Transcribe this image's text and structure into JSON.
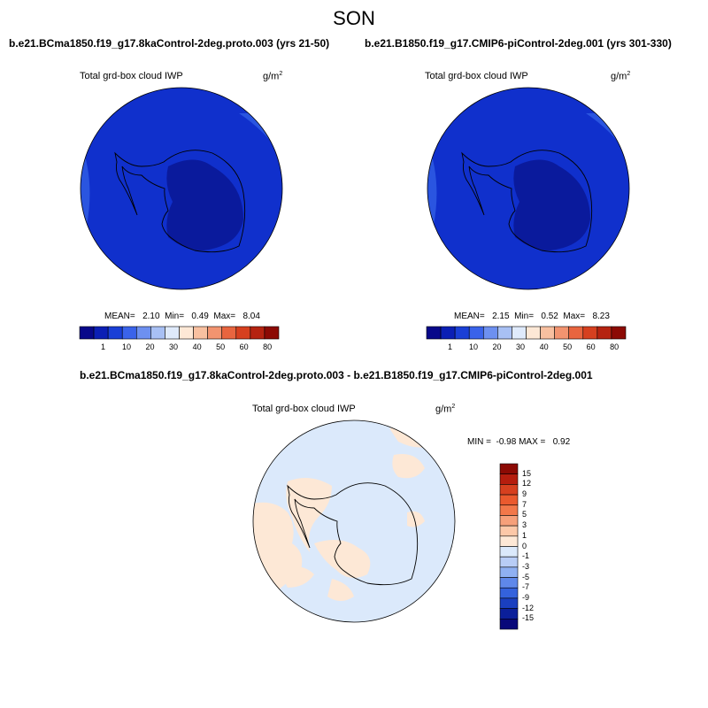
{
  "figure": {
    "season": "SON",
    "diff_title": "b.e21.BCma1850.f19_g17.8kaControl-2deg.proto.003 - b.e21.B1850.f19_g17.CMIP6-piControl-2deg.001"
  },
  "panels": [
    {
      "case": "b.e21.BCma1850.f19_g17.8kaControl-2deg.proto.003 (yrs 21-50)",
      "variable": "Total grd-box cloud IWP",
      "units_base": "g/m",
      "units_exp": "2",
      "stats": "MEAN=   2.10  Min=   0.49  Max=   8.04",
      "mean": 2.1,
      "min": 0.49,
      "max": 8.04
    },
    {
      "case": "b.e21.B1850.f19_g17.CMIP6-piControl-2deg.001 (yrs 301-330)",
      "variable": "Total grd-box cloud IWP",
      "units_base": "g/m",
      "units_exp": "2",
      "stats": "MEAN=   2.15  Min=   0.52  Max=   8.23",
      "mean": 2.15,
      "min": 0.52,
      "max": 8.23
    }
  ],
  "difference": {
    "variable": "Total grd-box cloud IWP",
    "units_base": "g/m",
    "units_exp": "2",
    "stats": "MIN =  -0.98 MAX =   0.92",
    "min": -0.98,
    "max": 0.92
  },
  "colorbar_main": {
    "ticks": [
      "1",
      "10",
      "20",
      "30",
      "40",
      "50",
      "60",
      "80"
    ],
    "colors": [
      "#08088a",
      "#0b1fb5",
      "#1a3fd6",
      "#3a63ea",
      "#6d90f0",
      "#a8c0f4",
      "#dfeafb",
      "#fde8d6",
      "#f8c0a0",
      "#f29470",
      "#e8653f",
      "#d6401f",
      "#b52310",
      "#8c0a04"
    ]
  },
  "colorbar_diff": {
    "ticks": [
      "15",
      "12",
      "9",
      "7",
      "5",
      "3",
      "1",
      "0",
      "-1",
      "-3",
      "-5",
      "-7",
      "-9",
      "-12",
      "-15"
    ],
    "colors": [
      "#8c0a04",
      "#b51d0e",
      "#d6401f",
      "#ea5a2e",
      "#f2784a",
      "#f6a07a",
      "#fcc8a8",
      "#fde8d6",
      "#dbe9fb",
      "#b8cdf6",
      "#8fb0f2",
      "#5f88ea",
      "#3462dc",
      "#1a3fc0",
      "#0b1f9a",
      "#08087a"
    ]
  },
  "map_colors": {
    "ocean_base": "#1030cc",
    "ocean_light": "#2a55e0",
    "continent": "#0a1a9c",
    "diff_negative": "#dbe9fb",
    "diff_positive": "#fde8d6",
    "coast": "#000000"
  }
}
